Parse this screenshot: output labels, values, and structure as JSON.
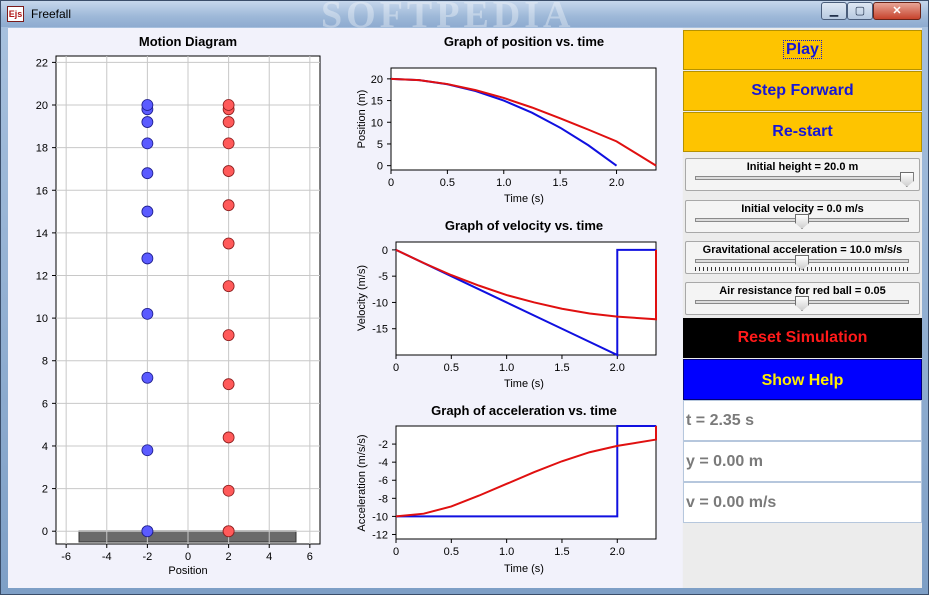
{
  "window": {
    "title": "Freefall",
    "app_icon_text": "Ejs",
    "watermark": "SOFTPEDIA",
    "controls": {
      "minimize": "▁",
      "maximize": "▢",
      "close": "✕"
    }
  },
  "motion_diagram": {
    "title": "Motion Diagram",
    "xlabel": "Position",
    "x_ticks": [
      "-6",
      "-4",
      "-2",
      "0",
      "2",
      "4",
      "6"
    ],
    "y_ticks": [
      "0",
      "2",
      "4",
      "6",
      "8",
      "10",
      "12",
      "14",
      "16",
      "18",
      "20",
      "22"
    ]
  },
  "position_graph": {
    "title": "Graph of position vs. time",
    "xlabel": "Time (s)",
    "ylabel": "Position (m)",
    "x_ticks": [
      "0",
      "0.5",
      "1.0",
      "1.5",
      "2.0"
    ],
    "y_ticks": [
      "0",
      "5",
      "10",
      "15",
      "20"
    ]
  },
  "velocity_graph": {
    "title": "Graph of velocity vs. time",
    "xlabel": "Time (s)",
    "ylabel": "Velocity (m/s)",
    "x_ticks": [
      "0",
      "0.5",
      "1.0",
      "1.5",
      "2.0"
    ],
    "y_ticks": [
      "0",
      "-5",
      "-10",
      "-15"
    ]
  },
  "acceleration_graph": {
    "title": "Graph of acceleration vs. time",
    "xlabel": "Time (s)",
    "ylabel": "Acceleration (m/s/s)",
    "x_ticks": [
      "0",
      "0.5",
      "1.0",
      "1.5",
      "2.0"
    ],
    "y_ticks": [
      "-2",
      "-4",
      "-6",
      "-8",
      "-10",
      "-12"
    ]
  },
  "controls": {
    "play_label": "Play",
    "step_label": "Step Forward",
    "restart_label": "Re-start",
    "reset_label": "Reset Simulation",
    "help_label": "Show Help"
  },
  "sliders": [
    {
      "label": "Initial height = 20.0 m",
      "fraction": 0.99
    },
    {
      "label": "Initial velocity = 0.0 m/s",
      "fraction": 0.5
    },
    {
      "label": "Gravitational acceleration = 10.0 m/s/s",
      "fraction": 0.5
    },
    {
      "label": "Air resistance for red ball = 0.05",
      "fraction": 0.5
    }
  ],
  "readouts": {
    "time": "t = 2.35 s",
    "height": "y = 0.00 m",
    "velocity": "v = 0.00 m/s"
  },
  "colors": {
    "blue_ball": "#5b5bff",
    "red_ball": "#ff5a5a",
    "blue_curve": "#1010e0",
    "red_curve": "#e01010",
    "button_yellow": "#fec400"
  },
  "chart_data": [
    {
      "type": "scatter",
      "title": "Motion Diagram",
      "xlabel": "Position",
      "ylabel": "",
      "xlim": [
        -6.5,
        6.5
      ],
      "ylim": [
        -0.6,
        22.3
      ],
      "grid": true,
      "series": [
        {
          "x": [
            -2,
            -2,
            -2,
            -2,
            -2,
            -2,
            -2,
            -2,
            -2,
            -2,
            -2,
            -2
          ],
          "y": [
            0,
            3.8,
            7.2,
            10.2,
            12.8,
            15.0,
            16.8,
            18.2,
            19.2,
            19.8,
            20.0,
            0
          ]
        },
        {
          "x": [
            2,
            2,
            2,
            2,
            2,
            2,
            2,
            2,
            2,
            2,
            2,
            2,
            2,
            2
          ],
          "y": [
            0,
            1.9,
            4.4,
            6.9,
            9.2,
            11.5,
            13.5,
            15.3,
            16.9,
            18.2,
            19.2,
            19.8,
            20.0,
            0
          ]
        }
      ]
    },
    {
      "type": "line",
      "title": "Graph of position vs. time",
      "xlabel": "Time (s)",
      "ylabel": "Position (m)",
      "xlim": [
        0,
        2.35
      ],
      "ylim": [
        -1,
        22.5
      ],
      "series": [
        {
          "x": [
            0,
            0.25,
            0.5,
            0.75,
            1.0,
            1.25,
            1.5,
            1.75,
            2.0
          ],
          "y": [
            20,
            19.7,
            18.75,
            17.2,
            15.0,
            12.2,
            8.75,
            4.7,
            0
          ]
        },
        {
          "x": [
            0,
            0.25,
            0.5,
            0.75,
            1.0,
            1.25,
            1.5,
            1.75,
            2.0,
            2.35
          ],
          "y": [
            20,
            19.7,
            18.8,
            17.4,
            15.6,
            13.4,
            10.9,
            8.3,
            5.6,
            0
          ]
        }
      ]
    },
    {
      "type": "line",
      "title": "Graph of velocity vs. time",
      "xlabel": "Time (s)",
      "ylabel": "Velocity (m/s)",
      "xlim": [
        0,
        2.35
      ],
      "ylim": [
        -20,
        1.5
      ],
      "series": [
        {
          "x": [
            0,
            0.5,
            1.0,
            1.5,
            2.0,
            2.0,
            2.35
          ],
          "y": [
            0,
            -5,
            -10,
            -15,
            -20,
            0,
            0
          ]
        },
        {
          "x": [
            0,
            0.25,
            0.5,
            0.75,
            1.0,
            1.25,
            1.5,
            1.75,
            2.0,
            2.35,
            2.35
          ],
          "y": [
            0,
            -2.5,
            -4.8,
            -6.8,
            -8.6,
            -10.0,
            -11.2,
            -12.1,
            -12.7,
            -13.2,
            0
          ]
        }
      ]
    },
    {
      "type": "line",
      "title": "Graph of acceleration vs. time",
      "xlabel": "Time (s)",
      "ylabel": "Acceleration (m/s/s)",
      "xlim": [
        0,
        2.35
      ],
      "ylim": [
        -12.5,
        0
      ],
      "series": [
        {
          "x": [
            0,
            2.0,
            2.0,
            2.35
          ],
          "y": [
            -10,
            -10,
            0,
            0
          ]
        },
        {
          "x": [
            0,
            0.25,
            0.5,
            0.75,
            1.0,
            1.25,
            1.5,
            1.75,
            2.0,
            2.35,
            2.35
          ],
          "y": [
            -10,
            -9.7,
            -8.9,
            -7.7,
            -6.4,
            -5.1,
            -3.9,
            -2.9,
            -2.2,
            -1.5,
            0
          ]
        }
      ]
    }
  ]
}
